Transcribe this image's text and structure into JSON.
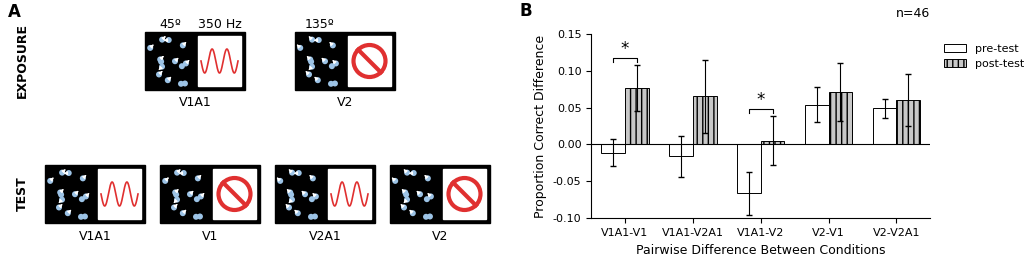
{
  "diagram": {
    "label": "A",
    "motions": {
      "V1": "45º",
      "V2": "135º"
    },
    "sound": "350 Hz",
    "rows": [
      {
        "label": "EXPOSURE",
        "labels": true,
        "stimuli": [
          {
            "name": "V1A1",
            "motion": "V1",
            "sound": true
          },
          {
            "name": "V2",
            "motion": "V2",
            "sound": false
          }
        ]
      },
      {
        "label": "TEST",
        "labels": false,
        "stimuli": [
          {
            "name": "V1A1",
            "motion": "V1",
            "sound": true
          },
          {
            "name": "V1",
            "motion": "V1",
            "sound": false
          },
          {
            "name": "V2A1",
            "motion": "V2",
            "sound": true
          },
          {
            "name": "V2",
            "motion": "V2",
            "sound": false
          }
        ]
      }
    ]
  },
  "chart_data": {
    "type": "bar",
    "label": "B",
    "x_label": "Pairwise Difference Between Conditions",
    "y_label": "Proportion Correct Difference",
    "categories": [
      "V1A1-V1",
      "V1A1-V2A1",
      "V1A1-V2",
      "V2-V1",
      "V2-V2A1"
    ],
    "series": [
      {
        "name": "pre-test",
        "color": "#ffffff",
        "values": [
          -0.011,
          -0.016,
          -0.066,
          0.054,
          0.049
        ],
        "errors": [
          0.018,
          0.028,
          0.029,
          0.024,
          0.013
        ]
      },
      {
        "name": "post-test",
        "color": "#c8c8c8",
        "values": [
          0.076,
          0.065,
          0.005,
          0.071,
          0.06
        ],
        "errors": [
          0.031,
          0.049,
          0.033,
          0.039,
          0.035
        ]
      }
    ],
    "ylim": [
      -0.1,
      0.15
    ],
    "yticks": [
      {
        "value": -0.1,
        "label": "-0.10"
      },
      -0.05,
      {
        "value": 0,
        "label": "0.00"
      },
      0.05,
      {
        "value": 0.1,
        "label": "0.10"
      },
      0.15
    ],
    "legend": "right",
    "annotations": [
      {
        "text": "n=46"
      },
      {
        "text": "*",
        "category": "V1A1-V1"
      },
      {
        "text": "*",
        "category": "V1A1-V2"
      }
    ]
  }
}
